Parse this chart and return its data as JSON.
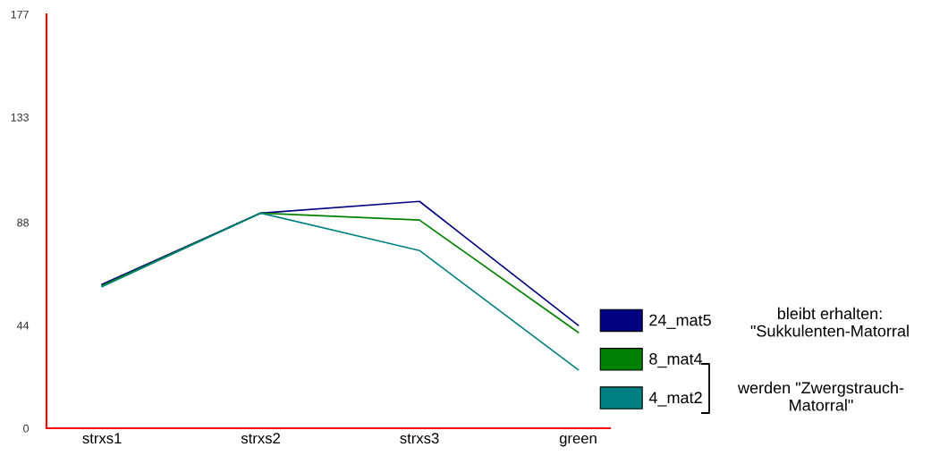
{
  "chart_data": {
    "type": "line",
    "categories": [
      "strxs1",
      "strxs2",
      "strxs3",
      "green"
    ],
    "series": [
      {
        "name": "24_mat5",
        "color": "#000080",
        "values": [
          61.5,
          92,
          97,
          44
        ]
      },
      {
        "name": "8_mat4",
        "color": "#008000",
        "values": [
          61,
          92,
          89,
          41
        ]
      },
      {
        "name": "4_mat2",
        "color": "#008080",
        "values": [
          60.5,
          92,
          76,
          25
        ]
      }
    ],
    "ylim": [
      0,
      177
    ],
    "yticks": [
      0,
      44,
      88,
      133,
      177
    ],
    "annotations": [
      "bleibt erhalten:\n\"Sukkulenten-Matorral",
      "werden \"Zwergstrauch-\nMatorral\""
    ],
    "legend": "right",
    "grid": false,
    "marker": "none",
    "line_style": "solid"
  }
}
